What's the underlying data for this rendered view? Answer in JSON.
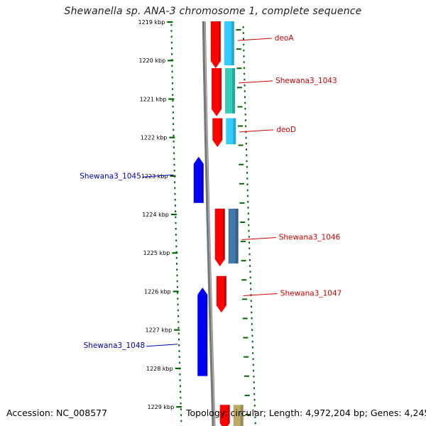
{
  "title": "Shewanella sp. ANA-3 chromosome 1, complete sequence",
  "footer": {
    "accession": "Accession: NC_008577",
    "topology": "Topology: circular; Length: 4,972,204 bp; Genes: 4,245"
  },
  "colors": {
    "forward_gene": "#ff0000",
    "reverse_gene": "#0000ff",
    "forward_label": "#cc0000",
    "reverse_label": "#0000aa",
    "backbone": "#777777",
    "tick": "#006600",
    "cds_cyan": "#33ccff",
    "cds_teal": "#33ccbb",
    "cds_steel": "#4477aa",
    "cds_khaki": "#bbaa66"
  },
  "axis": {
    "unit": "kbp",
    "ticks": [
      1219,
      1220,
      1221,
      1222,
      1223,
      1224,
      1225,
      1226,
      1227,
      1228,
      1229
    ]
  },
  "genes": [
    {
      "name": "deoA",
      "strand": "+",
      "start_kbp": 1218.6,
      "end_kbp": 1220.2
    },
    {
      "name": "Shewana3_1043",
      "strand": "+",
      "start_kbp": 1220.2,
      "end_kbp": 1221.45
    },
    {
      "name": "deoD",
      "strand": "+",
      "start_kbp": 1221.5,
      "end_kbp": 1222.25
    },
    {
      "name": "Shewana3_1045",
      "strand": "-",
      "start_kbp": 1222.5,
      "end_kbp": 1223.7
    },
    {
      "name": "Shewana3_1046",
      "strand": "+",
      "start_kbp": 1223.85,
      "end_kbp": 1225.35
    },
    {
      "name": "Shewana3_1047",
      "strand": "+",
      "start_kbp": 1225.6,
      "end_kbp": 1226.55
    },
    {
      "name": "Shewana3_1048",
      "strand": "-",
      "start_kbp": 1225.9,
      "end_kbp": 1228.2
    },
    {
      "name": "",
      "strand": "+",
      "start_kbp": 1228.95,
      "end_kbp": 1230.0
    }
  ]
}
